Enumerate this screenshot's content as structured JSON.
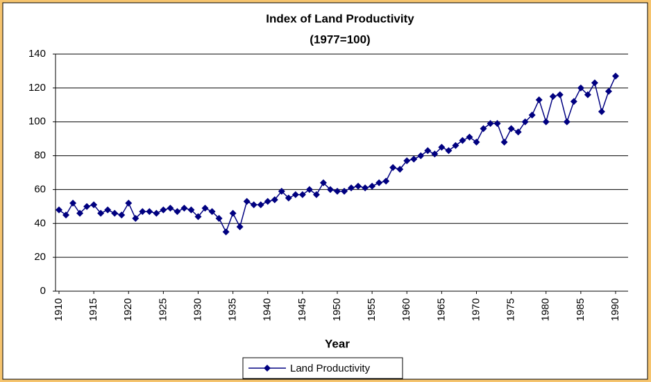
{
  "chart_data": {
    "type": "line",
    "title": "Index of Land Productivity",
    "subtitle": "(1977=100)",
    "x_label": "Year",
    "x": [
      1910,
      1911,
      1912,
      1913,
      1914,
      1915,
      1916,
      1917,
      1918,
      1919,
      1920,
      1921,
      1922,
      1923,
      1924,
      1925,
      1926,
      1927,
      1928,
      1929,
      1930,
      1931,
      1932,
      1933,
      1934,
      1935,
      1936,
      1937,
      1938,
      1939,
      1940,
      1941,
      1942,
      1943,
      1944,
      1945,
      1946,
      1947,
      1948,
      1949,
      1950,
      1951,
      1952,
      1953,
      1954,
      1955,
      1956,
      1957,
      1958,
      1959,
      1960,
      1961,
      1962,
      1963,
      1964,
      1965,
      1966,
      1967,
      1968,
      1969,
      1970,
      1971,
      1972,
      1973,
      1974,
      1975,
      1976,
      1977,
      1978,
      1979,
      1980,
      1981,
      1982,
      1983,
      1984,
      1985,
      1986,
      1987,
      1988,
      1989,
      1990
    ],
    "series": [
      {
        "name": "Land Productivity",
        "color": "#000080",
        "values": [
          48,
          45,
          52,
          46,
          50,
          51,
          46,
          48,
          46,
          45,
          52,
          43,
          47,
          47,
          46,
          48,
          49,
          47,
          49,
          48,
          44,
          49,
          47,
          43,
          35,
          46,
          38,
          53,
          51,
          51,
          53,
          54,
          59,
          55,
          57,
          57,
          60,
          57,
          64,
          60,
          59,
          59,
          61,
          62,
          61,
          62,
          64,
          65,
          73,
          72,
          77,
          78,
          80,
          83,
          81,
          85,
          83,
          86,
          89,
          91,
          88,
          96,
          99,
          99,
          88,
          96,
          94,
          100,
          104,
          113,
          100,
          115,
          116,
          100,
          112,
          120,
          116,
          123,
          106,
          118,
          127
        ]
      }
    ],
    "xlim": [
      1910,
      1990
    ],
    "xticks": [
      1910,
      1915,
      1920,
      1925,
      1930,
      1935,
      1940,
      1945,
      1950,
      1955,
      1960,
      1965,
      1970,
      1975,
      1980,
      1985,
      1990
    ],
    "ylim": [
      0,
      140
    ],
    "yticks": [
      0,
      20,
      40,
      60,
      80,
      100,
      120,
      140
    ],
    "grid": true,
    "legend": "bottom"
  }
}
